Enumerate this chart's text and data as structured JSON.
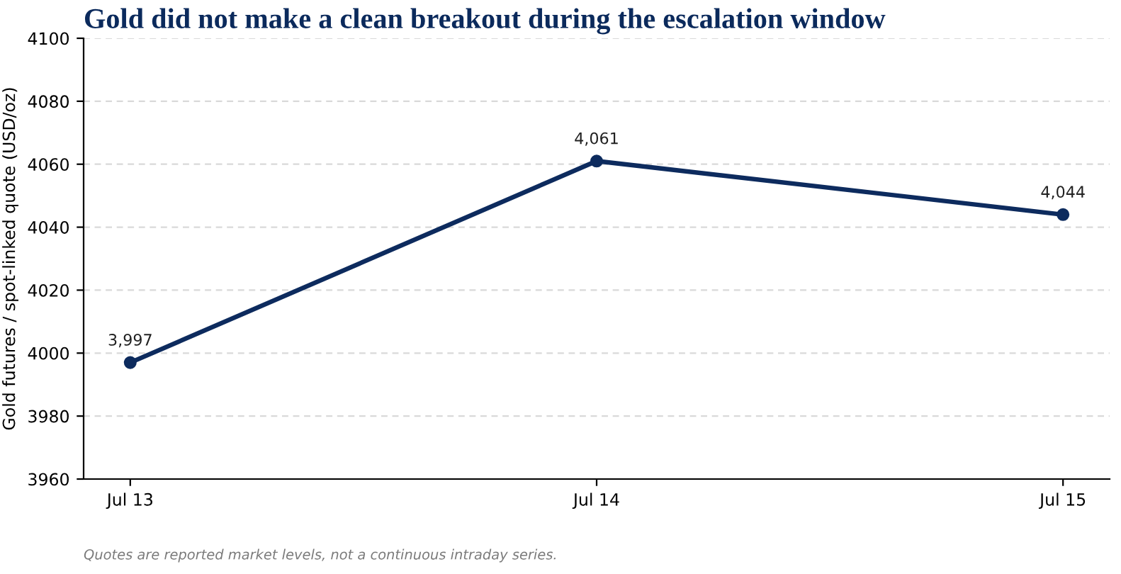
{
  "chart_data": {
    "type": "line",
    "title": "Gold did not make a clean breakout during the escalation window",
    "ylabel": "Gold futures / spot-linked quote (USD/oz)",
    "annotations": [
      "Quotes are reported market levels, not a continuous intraday series."
    ],
    "categories": [
      "Jul 13",
      "Jul 14",
      "Jul 15"
    ],
    "series": [
      {
        "color": "#0d2b5e",
        "values": [
          3997,
          4061,
          4044
        ],
        "value_labels": [
          "3,997",
          "4,061",
          "4,044"
        ]
      }
    ],
    "ylim": [
      3960,
      4100
    ],
    "yticks": [
      3960,
      3980,
      4000,
      4020,
      4040,
      4060,
      4080,
      4100
    ],
    "grid": "y",
    "marker": "circle",
    "line_style": "solid"
  }
}
